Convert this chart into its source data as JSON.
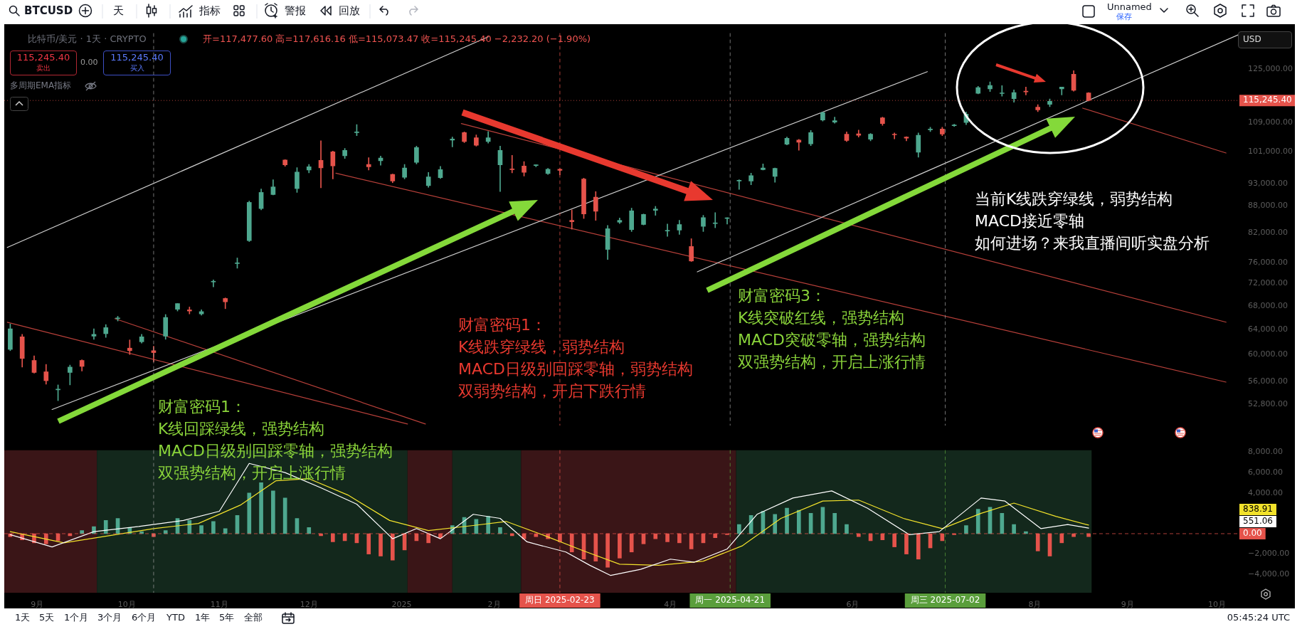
{
  "chart_data": [
    {
      "type": "candlestick",
      "title": "比特币/美元 · 1天 · CRYPTO",
      "subtitle": "开=117,477.60 高=117,616.16 低=115,073.47 收=115,245.40 −2,232.20 (−1.90%)",
      "x": [
        "2024-08-23",
        "2024-08-27",
        "2024-08-31",
        "2024-09-04",
        "2024-09-08",
        "2024-09-12",
        "2024-09-16",
        "2024-09-20",
        "2024-09-24",
        "2024-09-28",
        "2024-10-02",
        "2024-10-06",
        "2024-10-10",
        "2024-10-14",
        "2024-10-18",
        "2024-10-22",
        "2024-10-26",
        "2024-10-30",
        "2024-11-03",
        "2024-11-07",
        "2024-11-11",
        "2024-11-15",
        "2024-11-19",
        "2024-11-23",
        "2024-11-27",
        "2024-12-01",
        "2024-12-05",
        "2024-12-09",
        "2024-12-13",
        "2024-12-17",
        "2024-12-21",
        "2024-12-25",
        "2024-12-29",
        "2025-01-02",
        "2025-01-06",
        "2025-01-10",
        "2025-01-14",
        "2025-01-18",
        "2025-01-22",
        "2025-01-26",
        "2025-01-30",
        "2025-02-03",
        "2025-02-07",
        "2025-02-11",
        "2025-02-15",
        "2025-02-19",
        "2025-02-23",
        "2025-02-27",
        "2025-03-03",
        "2025-03-07",
        "2025-03-11",
        "2025-03-15",
        "2025-03-19",
        "2025-03-23",
        "2025-03-27",
        "2025-03-31",
        "2025-04-04",
        "2025-04-08",
        "2025-04-12",
        "2025-04-16",
        "2025-04-20",
        "2025-04-24",
        "2025-04-28",
        "2025-05-02",
        "2025-05-06",
        "2025-05-10",
        "2025-05-14",
        "2025-05-18",
        "2025-05-22",
        "2025-05-26",
        "2025-05-30",
        "2025-06-03",
        "2025-06-07",
        "2025-06-11",
        "2025-06-15",
        "2025-06-19",
        "2025-06-23",
        "2025-06-27",
        "2025-07-01",
        "2025-07-05",
        "2025-07-09",
        "2025-07-13",
        "2025-07-17",
        "2025-07-21",
        "2025-07-25",
        "2025-07-29",
        "2025-08-02",
        "2025-08-06",
        "2025-08-10",
        "2025-08-14",
        "2025-08-19"
      ],
      "ohlc": [
        [
          60800,
          64900,
          60600,
          64100
        ],
        [
          62800,
          63200,
          58100,
          59400
        ],
        [
          59100,
          59800,
          57200,
          57300
        ],
        [
          57400,
          58500,
          55600,
          56100
        ],
        [
          54800,
          55500,
          53300,
          54900
        ],
        [
          57300,
          58400,
          55500,
          58100
        ],
        [
          59100,
          59200,
          57500,
          58200
        ],
        [
          62900,
          64100,
          62400,
          63200
        ],
        [
          63300,
          64800,
          62700,
          64300
        ],
        [
          65800,
          66200,
          65400,
          65900
        ],
        [
          61000,
          62300,
          60000,
          60600
        ],
        [
          62000,
          63200,
          61800,
          62800
        ],
        [
          60600,
          61300,
          58900,
          60300
        ],
        [
          62900,
          66500,
          62400,
          66000
        ],
        [
          67400,
          68400,
          67100,
          68400
        ],
        [
          67300,
          67800,
          66600,
          67100
        ],
        [
          66600,
          67300,
          66400,
          67000
        ],
        [
          72300,
          72700,
          71400,
          72300
        ],
        [
          69300,
          69400,
          67500,
          68700
        ],
        [
          75800,
          76900,
          74900,
          75900
        ],
        [
          80400,
          89000,
          80200,
          88700
        ],
        [
          87300,
          91800,
          87000,
          91000
        ],
        [
          90500,
          94000,
          90400,
          92300
        ],
        [
          98900,
          99000,
          97300,
          97700
        ],
        [
          91900,
          97000,
          91000,
          95900
        ],
        [
          96400,
          97800,
          95700,
          97200
        ],
        [
          98800,
          103900,
          92100,
          96900
        ],
        [
          101000,
          101200,
          94200,
          97400
        ],
        [
          100000,
          101900,
          99300,
          101400
        ],
        [
          106100,
          108300,
          105300,
          106100
        ],
        [
          97800,
          99500,
          96400,
          97200
        ],
        [
          98700,
          99900,
          97600,
          99400
        ],
        [
          95300,
          95400,
          93300,
          93700
        ],
        [
          94600,
          97800,
          94200,
          96900
        ],
        [
          98300,
          102500,
          97900,
          102100
        ],
        [
          92600,
          95800,
          92200,
          94700
        ],
        [
          94500,
          97300,
          94300,
          96500
        ],
        [
          104100,
          104900,
          102300,
          104400
        ],
        [
          106100,
          106300,
          103400,
          103700
        ],
        [
          104700,
          105500,
          102500,
          102700
        ],
        [
          103700,
          106400,
          103300,
          104700
        ],
        [
          97700,
          102500,
          91200,
          101400
        ],
        [
          96600,
          100100,
          95700,
          96500
        ],
        [
          97400,
          98500,
          94900,
          95800
        ],
        [
          97500,
          97700,
          97200,
          97600
        ],
        [
          95500,
          96800,
          95300,
          96600
        ],
        [
          96600,
          96700,
          95200,
          96300
        ],
        [
          84700,
          87000,
          82800,
          84400
        ],
        [
          94200,
          94400,
          85100,
          86100
        ],
        [
          89900,
          91200,
          84700,
          86700
        ],
        [
          78600,
          83600,
          76600,
          82900
        ],
        [
          84300,
          85200,
          84000,
          84700
        ],
        [
          82700,
          87400,
          82300,
          86800
        ],
        [
          83800,
          86100,
          83700,
          86000
        ],
        [
          86900,
          87800,
          85800,
          87200
        ],
        [
          82400,
          83900,
          81300,
          82500
        ],
        [
          82600,
          84700,
          81700,
          83800
        ],
        [
          79200,
          80800,
          76200,
          76300
        ],
        [
          83400,
          85800,
          82300,
          85300
        ],
        [
          84000,
          86400,
          83100,
          84000
        ],
        [
          85100,
          85300,
          83900,
          85100
        ],
        [
          93700,
          94000,
          91700,
          93900
        ],
        [
          93700,
          95600,
          92800,
          95000
        ],
        [
          96500,
          97900,
          96400,
          96900
        ],
        [
          94800,
          96900,
          93400,
          96800
        ],
        [
          103000,
          104900,
          102800,
          104600
        ],
        [
          104100,
          104300,
          101400,
          103500
        ],
        [
          103100,
          106700,
          102600,
          106100
        ],
        [
          109600,
          111900,
          109300,
          111700
        ],
        [
          109000,
          110400,
          108700,
          109400
        ],
        [
          105700,
          106300,
          103700,
          104000
        ],
        [
          105800,
          106800,
          104900,
          105400
        ],
        [
          104300,
          105900,
          103900,
          105700
        ],
        [
          110200,
          110400,
          108100,
          108600
        ],
        [
          105600,
          106000,
          104400,
          105500
        ],
        [
          104900,
          105000,
          103900,
          104600
        ],
        [
          100900,
          106000,
          99600,
          105400
        ],
        [
          106900,
          107600,
          106400,
          107100
        ],
        [
          107100,
          107600,
          105300,
          105700
        ],
        [
          108000,
          108400,
          107800,
          108200
        ],
        [
          108900,
          111900,
          108300,
          111300
        ],
        [
          117400,
          119500,
          117200,
          119100
        ],
        [
          118700,
          120900,
          117900,
          119800
        ],
        [
          117300,
          119700,
          116500,
          117400
        ],
        [
          115800,
          118400,
          114700,
          117600
        ],
        [
          118000,
          119300,
          116900,
          117800
        ],
        [
          113300,
          114000,
          112000,
          112500
        ],
        [
          114100,
          115700,
          113400,
          115000
        ],
        [
          118700,
          119300,
          116900,
          119300
        ],
        [
          123300,
          124400,
          118000,
          118300
        ],
        [
          117477.6,
          117616.16,
          115073.47,
          115245.4
        ]
      ],
      "series": [
        {
          "type": "line",
          "x": [
            "2024-08-22",
            "2025-01-30"
          ],
          "values": [
            79000,
            135700
          ],
          "color": "#cfcfcf"
        },
        {
          "type": "line",
          "x": [
            "2024-09-06",
            "2025-06-26"
          ],
          "values": [
            52100,
            124100
          ],
          "color": "#cfcfcf"
        },
        {
          "type": "line",
          "x": [
            "2025-04-10",
            "2025-10-08"
          ],
          "values": [
            74200,
            136400
          ],
          "color": "#cfcfcf"
        },
        {
          "type": "line",
          "x": [
            "2024-08-22",
            "2025-01-03"
          ],
          "values": [
            65200,
            50200
          ],
          "color": "#b8403a"
        },
        {
          "type": "line",
          "x": [
            "2024-09-27",
            "2025-01-09"
          ],
          "values": [
            65800,
            50200
          ],
          "color": "#b8403a"
        },
        {
          "type": "line",
          "x": [
            "2024-12-10",
            "2025-10-04"
          ],
          "values": [
            95600,
            55900
          ],
          "color": "#b8403a"
        },
        {
          "type": "line",
          "x": [
            "2025-01-21",
            "2025-10-04"
          ],
          "values": [
            108600,
            65200
          ],
          "color": "#b8403a"
        },
        {
          "type": "line",
          "x": [
            "2025-08-17",
            "2025-10-04"
          ],
          "values": [
            113000,
            100700
          ],
          "color": "#b8403a"
        }
      ],
      "log": "y",
      "xlim": [
        "2024-08-21",
        "2025-10-08"
      ],
      "ylim": [
        50000,
        137000
      ],
      "yticks": [
        {
          "value": 52800,
          "label": "52,800.00"
        },
        {
          "value": 56000,
          "label": "56,000.00"
        },
        {
          "value": 60000,
          "label": "60,000.00"
        },
        {
          "value": 64000,
          "label": "64,000.00"
        },
        {
          "value": 68000,
          "label": "68,000.00"
        },
        {
          "value": 72000,
          "label": "72,000.00"
        },
        {
          "value": 76000,
          "label": "76,000.00"
        },
        {
          "value": 82000,
          "label": "82,000.00"
        },
        {
          "value": 88000,
          "label": "88,000.00"
        },
        {
          "value": 93000,
          "label": "93,000.00"
        },
        {
          "value": 101000,
          "label": "101,000.00"
        },
        {
          "value": 109000,
          "label": "109,000.00"
        },
        {
          "value": 125000,
          "label": "125,000.00"
        }
      ],
      "tick_labels": "y",
      "grid": false,
      "ref_lines": [
        {
          "axis": "y",
          "value": 115245.4,
          "label": "115,245.40",
          "color": "#e5534b",
          "line_style": "dotted"
        },
        {
          "axis": "x",
          "value": "2024-10-10",
          "color": "#9a9a9a",
          "line_style": "dashed"
        },
        {
          "axis": "x",
          "value": "2025-02-23",
          "color": "#e5534b",
          "line_style": "dashed"
        },
        {
          "axis": "x",
          "value": "2025-04-21",
          "color": "#9a9a9a",
          "line_style": "dashed"
        },
        {
          "axis": "x",
          "value": "2025-07-02",
          "color": "#9a9a9a",
          "line_style": "dashed"
        }
      ],
      "annotations": [
        "BTCUSD",
        "天",
        "指标",
        "警报",
        "回放",
        "Unnamed",
        "保存",
        "115,245.40",
        "卖出",
        "0.00",
        "115,245.40",
        "买入",
        "多周期EMA指标",
        "USD",
        "财富密码1：",
        "K线回踩绿线，强势结构",
        "MACD日级别回踩零轴，强势结构",
        "双强势结构，开启上涨行情",
        "财富密码1：",
        "K线跌穿绿线，弱势结构",
        "MACD日级别回踩零轴，弱势结构",
        "双弱势结构，开启下跌行情",
        "财富密码3：",
        "K线突破红线，强势结构",
        "MACD突破零轴，强势结构",
        "双强势结构，开启上涨行情",
        "当前K线跌穿绿线，弱势结构",
        "MACD接近零轴",
        "如何进场？来我直播间听实盘分析",
        "1天",
        "5天",
        "1个月",
        "3个月",
        "6个月",
        "YTD",
        "1年",
        "5年",
        "全部",
        "05:45:24 UTC"
      ]
    },
    {
      "type": "bar",
      "series": [
        {
          "type": "bar",
          "x": [
            "2024-08-23",
            "2024-08-27",
            "2024-08-31",
            "2024-09-04",
            "2024-09-08",
            "2024-09-12",
            "2024-09-16",
            "2024-09-20",
            "2024-09-24",
            "2024-09-28",
            "2024-10-02",
            "2024-10-06",
            "2024-10-10",
            "2024-10-14",
            "2024-10-18",
            "2024-10-22",
            "2024-10-26",
            "2024-10-30",
            "2024-11-03",
            "2024-11-07",
            "2024-11-11",
            "2024-11-15",
            "2024-11-19",
            "2024-11-23",
            "2024-11-27",
            "2024-12-01",
            "2024-12-05",
            "2024-12-09",
            "2024-12-13",
            "2024-12-17",
            "2024-12-21",
            "2024-12-25",
            "2024-12-29",
            "2025-01-02",
            "2025-01-06",
            "2025-01-10",
            "2025-01-14",
            "2025-01-18",
            "2025-01-22",
            "2025-01-26",
            "2025-01-30",
            "2025-02-03",
            "2025-02-07",
            "2025-02-11",
            "2025-02-15",
            "2025-02-19",
            "2025-02-23",
            "2025-02-27",
            "2025-03-03",
            "2025-03-07",
            "2025-03-11",
            "2025-03-15",
            "2025-03-19",
            "2025-03-23",
            "2025-03-27",
            "2025-03-31",
            "2025-04-04",
            "2025-04-08",
            "2025-04-12",
            "2025-04-16",
            "2025-04-20",
            "2025-04-24",
            "2025-04-28",
            "2025-05-02",
            "2025-05-06",
            "2025-05-10",
            "2025-05-14",
            "2025-05-18",
            "2025-05-22",
            "2025-05-26",
            "2025-05-30",
            "2025-06-03",
            "2025-06-07",
            "2025-06-11",
            "2025-06-15",
            "2025-06-19",
            "2025-06-23",
            "2025-06-27",
            "2025-07-01",
            "2025-07-05",
            "2025-07-09",
            "2025-07-13",
            "2025-07-17",
            "2025-07-21",
            "2025-07-25",
            "2025-07-29",
            "2025-08-02",
            "2025-08-06",
            "2025-08-10",
            "2025-08-14",
            "2025-08-19"
          ],
          "values": [
            -300,
            -600,
            -900,
            -1000,
            -700,
            -200,
            300,
            700,
            1300,
            1500,
            600,
            200,
            -300,
            300,
            1500,
            1300,
            800,
            1200,
            500,
            1800,
            4000,
            5000,
            4200,
            3500,
            1500,
            600,
            -200,
            -800,
            -700,
            -900,
            -2000,
            -2200,
            -2600,
            -1600,
            -700,
            -900,
            -400,
            800,
            1600,
            1400,
            1700,
            600,
            -200,
            -500,
            -300,
            -500,
            -800,
            -1800,
            -2500,
            -2700,
            -3300,
            -2400,
            -1800,
            -1000,
            -500,
            -800,
            -900,
            -1500,
            -900,
            -400,
            -100,
            900,
            1800,
            2200,
            1900,
            2500,
            2300,
            2000,
            2600,
            2000,
            900,
            -300,
            -700,
            -600,
            -1300,
            -2000,
            -2500,
            -1400,
            -700,
            -100,
            800,
            2400,
            2600,
            2000,
            900,
            200,
            -1700,
            -2200,
            -900,
            -300,
            -300
          ],
          "colors": [
            "#e5534b",
            "#e5534b",
            "#e5534b",
            "#e5534b",
            "#e5534b",
            "#e5534b",
            "#4ea88f",
            "#4ea88f",
            "#4ea88f",
            "#4ea88f",
            "#4ea88f",
            "#4ea88f",
            "#e5534b",
            "#4ea88f",
            "#4ea88f",
            "#4ea88f",
            "#4ea88f",
            "#4ea88f",
            "#4ea88f",
            "#4ea88f",
            "#4ea88f",
            "#4ea88f",
            "#4ea88f",
            "#4ea88f",
            "#4ea88f",
            "#4ea88f",
            "#e5534b",
            "#e5534b",
            "#e5534b",
            "#e5534b",
            "#e5534b",
            "#e5534b",
            "#e5534b",
            "#e5534b",
            "#e5534b",
            "#e5534b",
            "#e5534b",
            "#4ea88f",
            "#4ea88f",
            "#4ea88f",
            "#4ea88f",
            "#4ea88f",
            "#e5534b",
            "#e5534b",
            "#e5534b",
            "#e5534b",
            "#e5534b",
            "#e5534b",
            "#e5534b",
            "#e5534b",
            "#e5534b",
            "#e5534b",
            "#e5534b",
            "#e5534b",
            "#e5534b",
            "#e5534b",
            "#e5534b",
            "#e5534b",
            "#e5534b",
            "#e5534b",
            "#e5534b",
            "#4ea88f",
            "#4ea88f",
            "#4ea88f",
            "#4ea88f",
            "#4ea88f",
            "#4ea88f",
            "#4ea88f",
            "#4ea88f",
            "#4ea88f",
            "#4ea88f",
            "#e5534b",
            "#e5534b",
            "#e5534b",
            "#e5534b",
            "#e5534b",
            "#e5534b",
            "#e5534b",
            "#e5534b",
            "#e5534b",
            "#4ea88f",
            "#4ea88f",
            "#4ea88f",
            "#4ea88f",
            "#4ea88f",
            "#4ea88f",
            "#e5534b",
            "#e5534b",
            "#e5534b",
            "#e5534b",
            "#e5534b"
          ]
        },
        {
          "type": "line",
          "x": [
            "2024-08-23",
            "2024-09-06",
            "2024-09-20",
            "2024-10-05",
            "2024-10-20",
            "2024-11-01",
            "2024-11-11",
            "2024-11-23",
            "2024-12-05",
            "2024-12-17",
            "2024-12-29",
            "2025-01-06",
            "2025-01-14",
            "2025-01-25",
            "2025-02-03",
            "2025-02-12",
            "2025-02-25",
            "2025-03-05",
            "2025-03-12",
            "2025-03-22",
            "2025-04-01",
            "2025-04-09",
            "2025-04-20",
            "2025-04-30",
            "2025-05-12",
            "2025-05-25",
            "2025-06-06",
            "2025-06-20",
            "2025-06-30",
            "2025-07-14",
            "2025-07-22",
            "2025-08-03",
            "2025-08-12",
            "2025-08-19"
          ],
          "values": [
            -100,
            -1300,
            200,
            700,
            1300,
            2200,
            6900,
            6000,
            4500,
            2900,
            -500,
            500,
            -500,
            1900,
            1500,
            -800,
            -1800,
            -3100,
            -4100,
            -3500,
            -2500,
            -2800,
            -1500,
            1900,
            3500,
            4200,
            2500,
            -100,
            200,
            3500,
            3200,
            500,
            900,
            550
          ],
          "color": "#ffffff"
        },
        {
          "type": "line",
          "x": [
            "2024-08-23",
            "2024-09-10",
            "2024-09-25",
            "2024-10-10",
            "2024-10-25",
            "2024-11-08",
            "2024-11-20",
            "2024-12-01",
            "2024-12-14",
            "2024-12-28",
            "2025-01-10",
            "2025-01-25",
            "2025-02-05",
            "2025-02-18",
            "2025-03-03",
            "2025-03-15",
            "2025-03-28",
            "2025-04-12",
            "2025-04-25",
            "2025-05-08",
            "2025-05-22",
            "2025-06-03",
            "2025-06-18",
            "2025-07-01",
            "2025-07-14",
            "2025-07-25",
            "2025-08-08",
            "2025-08-19"
          ],
          "values": [
            200,
            -900,
            -200,
            500,
            1000,
            2800,
            5200,
            5400,
            3800,
            1300,
            300,
            800,
            1200,
            -200,
            -1700,
            -3000,
            -3100,
            -2700,
            -1200,
            1500,
            3200,
            3300,
            1500,
            500,
            2000,
            3000,
            1700,
            840
          ],
          "color": "#f2e22b"
        }
      ],
      "xlim": [
        "2024-08-21",
        "2025-10-08"
      ],
      "ylim": [
        -5800,
        8200
      ],
      "xticks": [
        {
          "value": "2024-09-01",
          "label": "9月"
        },
        {
          "value": "2024-10-01",
          "label": "10月"
        },
        {
          "value": "2024-11-01",
          "label": "11月"
        },
        {
          "value": "2024-12-01",
          "label": "12月"
        },
        {
          "value": "2025-01-01",
          "label": "2025"
        },
        {
          "value": "2025-02-01",
          "label": "2月"
        },
        {
          "value": "2025-04-01",
          "label": "4月"
        },
        {
          "value": "2025-06-01",
          "label": "6月"
        },
        {
          "value": "2025-08-01",
          "label": "8月"
        },
        {
          "value": "2025-09-01",
          "label": "9月"
        },
        {
          "value": "2025-10-01",
          "label": "10月"
        }
      ],
      "yticks": [
        {
          "value": 8000,
          "label": "8,000.00"
        },
        {
          "value": 6000,
          "label": "6,000.00"
        },
        {
          "value": 4000,
          "label": "4,000.00"
        },
        {
          "value": -2000,
          "label": "−2,000.00"
        },
        {
          "value": -4000,
          "label": "−4,000.00"
        }
      ],
      "grid": false,
      "bands": [
        {
          "axis": "x",
          "from": "2024-08-21",
          "to": "2024-09-21",
          "color": "#3a1517"
        },
        {
          "axis": "x",
          "from": "2024-09-21",
          "to": "2025-01-03",
          "color": "#13281c"
        },
        {
          "axis": "x",
          "from": "2025-01-03",
          "to": "2025-01-18",
          "color": "#3a1517"
        },
        {
          "axis": "x",
          "from": "2025-01-18",
          "to": "2025-02-10",
          "color": "#13281c"
        },
        {
          "axis": "x",
          "from": "2025-02-10",
          "to": "2025-04-23",
          "color": "#3a1517"
        },
        {
          "axis": "x",
          "from": "2025-04-23",
          "to": "2025-08-20",
          "color": "#13281c"
        }
      ],
      "ref_lines": [
        {
          "axis": "y",
          "value": 0,
          "label": "0.00",
          "color": "#e5534b",
          "line_style": "dashed"
        },
        {
          "axis": "x",
          "value": "2024-10-10",
          "color": "#9a9a9a",
          "line_style": "dashed"
        },
        {
          "axis": "x",
          "value": "2025-02-23",
          "label": "周日 2025-02-23",
          "color": "#e5534b",
          "line_style": "dashed"
        },
        {
          "axis": "x",
          "value": "2025-04-21",
          "label": "周一 2025-04-21",
          "color": "#5a9e3c",
          "line_style": "dashed"
        },
        {
          "axis": "x",
          "value": "2025-07-02",
          "label": "周三 2025-07-02",
          "color": "#5a9e3c",
          "line_style": "dashed"
        }
      ],
      "annotations": [
        "838.91",
        "551.06"
      ]
    }
  ]
}
